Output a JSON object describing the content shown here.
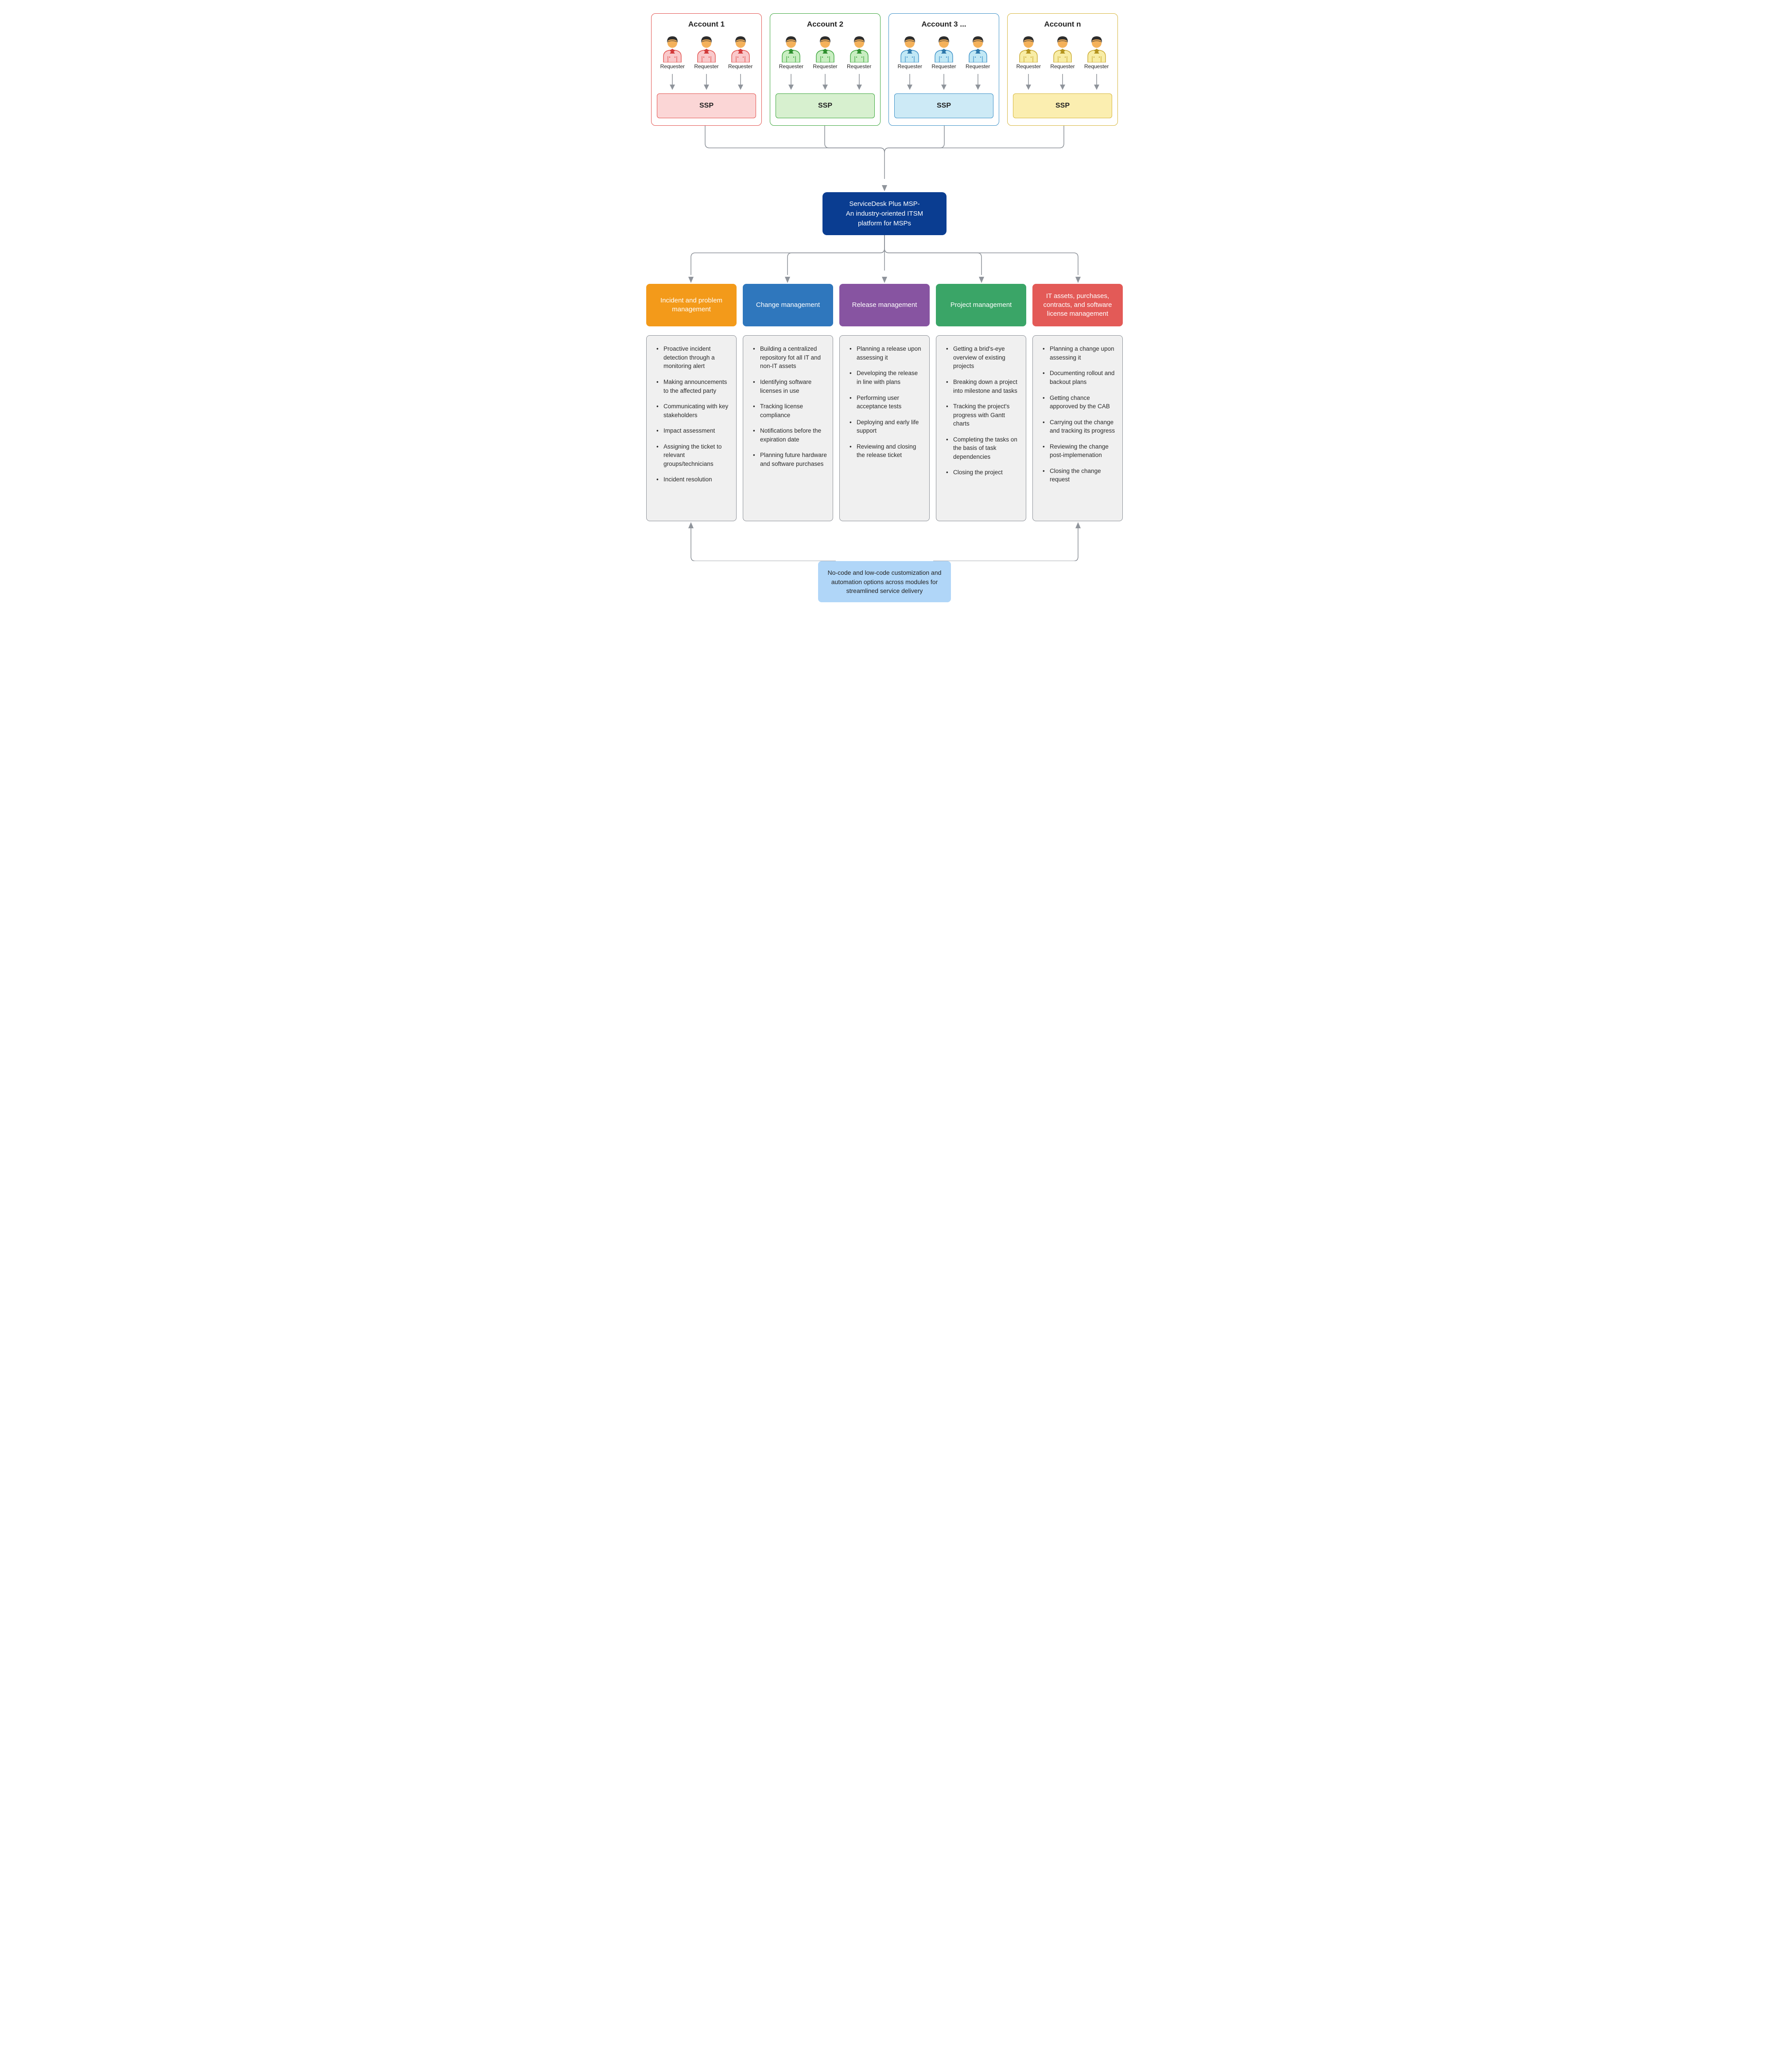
{
  "colors": {
    "arrow": "#8f949b",
    "central_bg": "#0a3d91",
    "bottom_bg": "#b0d6f8",
    "module_body_bg": "#f0f0f0",
    "module_body_border": "#8a8f96"
  },
  "accounts": [
    {
      "title": "Account 1",
      "border": "#e2504c",
      "ssp_bg": "#fbd6d6",
      "shirt_fill": "#f9c9cb",
      "shirt_stroke": "#e2504c",
      "tie": "#d13a3a"
    },
    {
      "title": "Account 2",
      "border": "#3aa53a",
      "ssp_bg": "#d7f0cf",
      "shirt_fill": "#c9eec2",
      "shirt_stroke": "#3aa53a",
      "tie": "#2f8f2f"
    },
    {
      "title": "Account 3  ...",
      "border": "#3a8fc7",
      "ssp_bg": "#cdeaf6",
      "shirt_fill": "#c2e8f5",
      "shirt_stroke": "#3a8fc7",
      "tie": "#2e78aa"
    },
    {
      "title": "Account n",
      "border": "#d6b53a",
      "ssp_bg": "#fbeeb0",
      "shirt_fill": "#f8eda6",
      "shirt_stroke": "#c9a82e",
      "tie": "#b4941f"
    }
  ],
  "labels": {
    "requester": "Requester",
    "ssp": "SSP"
  },
  "central": {
    "line1": "ServiceDesk Plus MSP-",
    "line2": "An industry-oriented ITSM",
    "line3": "platform for MSPs"
  },
  "modules": [
    {
      "title": "Incident and problem management",
      "color": "#f39a1a",
      "items": [
        "Proactive incident detection through a monitoring alert",
        "Making announcements to the affected party",
        "Communicating with key stakeholders",
        "Impact assessment",
        "Assigning the ticket to relevant groups/technicians",
        "Incident resolution"
      ]
    },
    {
      "title": "Change management",
      "color": "#2f77bd",
      "items": [
        "Building a centralized repository fot all IT and non-IT assets",
        "Identifying software licenses in use",
        "Tracking license compliance",
        "Notifications before the expiration date",
        "Planning future hardware and software purchases"
      ]
    },
    {
      "title": "Release management",
      "color": "#8754a1",
      "items": [
        "Planning a release upon assessing it",
        "Developing the release in line with plans",
        "Performing user acceptance tests",
        "Deploying and early life support",
        "Reviewing and closing the release ticket"
      ]
    },
    {
      "title": "Project management",
      "color": "#3aa567",
      "items": [
        "Getting a brid's-eye overview of existing projects",
        "Breaking down a project into milestone and tasks",
        "Tracking the project's progress with Gantt charts",
        "Completing the tasks on the basis of task dependencies",
        "Closing the project"
      ]
    },
    {
      "title": "IT assets, purchases, contracts, and software license management",
      "color": "#e35a57",
      "items": [
        "Planning a change upon assessing it",
        "Documenting rollout and backout plans",
        "Getting chance apporoved by the CAB",
        "Carrying out the change and tracking its progress",
        "Reviewing the change post-implemenation",
        "Closing the change request"
      ]
    }
  ],
  "bottom": "No-code and low-code customization and automation options across modules for streamlined service delivery"
}
